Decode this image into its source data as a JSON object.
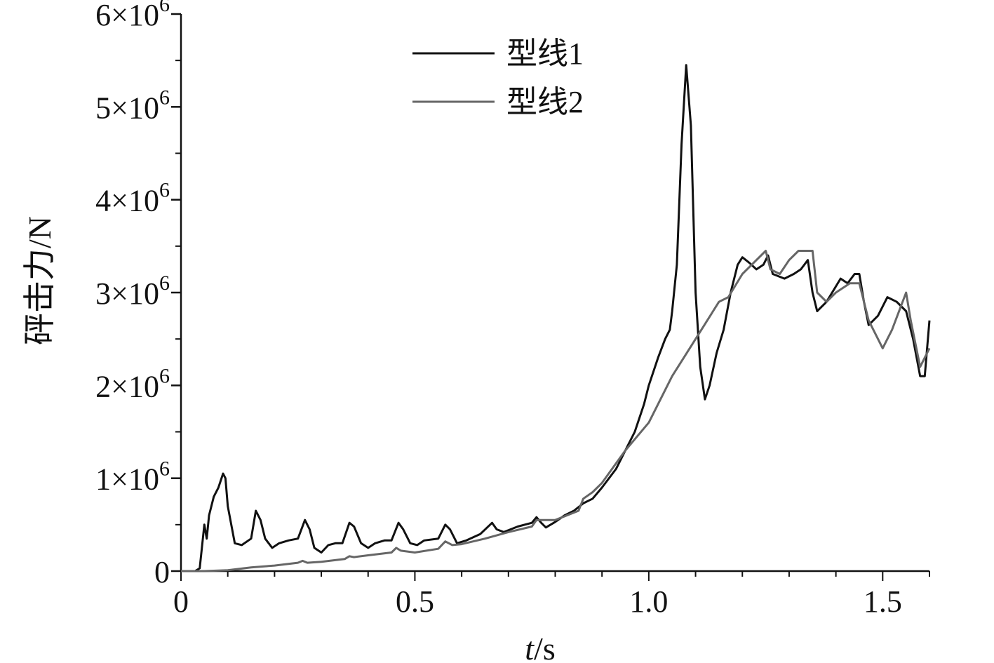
{
  "chart_data": {
    "type": "line",
    "xlabel_italic": "t",
    "xlabel_unit": "/s",
    "ylabel": "砰击力/N",
    "xlim": [
      0,
      1.6
    ],
    "ylim": [
      0,
      6000000
    ],
    "x_ticks": [
      0,
      0.5,
      1.0,
      1.5
    ],
    "x_tick_labels": [
      "0",
      "0.5",
      "1.0",
      "1.5"
    ],
    "y_ticks": [
      0,
      1000000,
      2000000,
      3000000,
      4000000,
      5000000,
      6000000
    ],
    "y_tick_mantissas": [
      "0",
      "1",
      "2",
      "3",
      "4",
      "5",
      "6"
    ],
    "y_tick_exponent_base": "×10",
    "y_tick_exponent": "6",
    "legend_position": "top-center",
    "grid": false,
    "series": [
      {
        "name": "型线1",
        "color": "#111111",
        "points": [
          [
            0,
            0
          ],
          [
            0.03,
            0
          ],
          [
            0.04,
            0.03
          ],
          [
            0.05,
            0.5
          ],
          [
            0.055,
            0.35
          ],
          [
            0.06,
            0.6
          ],
          [
            0.07,
            0.8
          ],
          [
            0.08,
            0.9
          ],
          [
            0.09,
            1.05
          ],
          [
            0.095,
            1.0
          ],
          [
            0.1,
            0.7
          ],
          [
            0.115,
            0.3
          ],
          [
            0.13,
            0.28
          ],
          [
            0.15,
            0.35
          ],
          [
            0.16,
            0.65
          ],
          [
            0.17,
            0.55
          ],
          [
            0.18,
            0.35
          ],
          [
            0.195,
            0.25
          ],
          [
            0.21,
            0.3
          ],
          [
            0.23,
            0.33
          ],
          [
            0.25,
            0.35
          ],
          [
            0.265,
            0.55
          ],
          [
            0.275,
            0.45
          ],
          [
            0.285,
            0.25
          ],
          [
            0.3,
            0.2
          ],
          [
            0.315,
            0.28
          ],
          [
            0.33,
            0.3
          ],
          [
            0.345,
            0.3
          ],
          [
            0.36,
            0.52
          ],
          [
            0.37,
            0.48
          ],
          [
            0.385,
            0.3
          ],
          [
            0.4,
            0.25
          ],
          [
            0.415,
            0.3
          ],
          [
            0.435,
            0.33
          ],
          [
            0.45,
            0.33
          ],
          [
            0.465,
            0.52
          ],
          [
            0.475,
            0.45
          ],
          [
            0.49,
            0.3
          ],
          [
            0.505,
            0.28
          ],
          [
            0.52,
            0.33
          ],
          [
            0.55,
            0.35
          ],
          [
            0.565,
            0.5
          ],
          [
            0.575,
            0.45
          ],
          [
            0.59,
            0.3
          ],
          [
            0.61,
            0.33
          ],
          [
            0.64,
            0.4
          ],
          [
            0.665,
            0.52
          ],
          [
            0.675,
            0.45
          ],
          [
            0.69,
            0.42
          ],
          [
            0.72,
            0.48
          ],
          [
            0.75,
            0.52
          ],
          [
            0.76,
            0.58
          ],
          [
            0.77,
            0.52
          ],
          [
            0.78,
            0.47
          ],
          [
            0.8,
            0.53
          ],
          [
            0.82,
            0.6
          ],
          [
            0.84,
            0.65
          ],
          [
            0.86,
            0.73
          ],
          [
            0.88,
            0.78
          ],
          [
            0.9,
            0.9
          ],
          [
            0.93,
            1.1
          ],
          [
            0.95,
            1.3
          ],
          [
            0.97,
            1.5
          ],
          [
            0.99,
            1.8
          ],
          [
            1.0,
            2.0
          ],
          [
            1.02,
            2.3
          ],
          [
            1.035,
            2.5
          ],
          [
            1.045,
            2.6
          ],
          [
            1.05,
            2.8
          ],
          [
            1.06,
            3.3
          ],
          [
            1.07,
            4.6
          ],
          [
            1.08,
            5.45
          ],
          [
            1.09,
            4.8
          ],
          [
            1.1,
            3.0
          ],
          [
            1.11,
            2.2
          ],
          [
            1.12,
            1.85
          ],
          [
            1.13,
            2.0
          ],
          [
            1.145,
            2.35
          ],
          [
            1.16,
            2.6
          ],
          [
            1.175,
            3.0
          ],
          [
            1.19,
            3.3
          ],
          [
            1.2,
            3.38
          ],
          [
            1.215,
            3.32
          ],
          [
            1.23,
            3.25
          ],
          [
            1.245,
            3.3
          ],
          [
            1.255,
            3.4
          ],
          [
            1.265,
            3.2
          ],
          [
            1.29,
            3.15
          ],
          [
            1.31,
            3.2
          ],
          [
            1.325,
            3.25
          ],
          [
            1.34,
            3.35
          ],
          [
            1.35,
            3.0
          ],
          [
            1.36,
            2.8
          ],
          [
            1.38,
            2.9
          ],
          [
            1.41,
            3.15
          ],
          [
            1.425,
            3.1
          ],
          [
            1.44,
            3.2
          ],
          [
            1.45,
            3.2
          ],
          [
            1.46,
            2.9
          ],
          [
            1.47,
            2.65
          ],
          [
            1.49,
            2.75
          ],
          [
            1.51,
            2.95
          ],
          [
            1.53,
            2.9
          ],
          [
            1.55,
            2.8
          ],
          [
            1.565,
            2.5
          ],
          [
            1.58,
            2.1
          ],
          [
            1.59,
            2.1
          ],
          [
            1.6,
            2.7
          ]
        ]
      },
      {
        "name": "型线2",
        "color": "#666666",
        "points": [
          [
            0,
            0
          ],
          [
            0.05,
            0
          ],
          [
            0.1,
            0.01
          ],
          [
            0.15,
            0.04
          ],
          [
            0.2,
            0.06
          ],
          [
            0.25,
            0.09
          ],
          [
            0.26,
            0.11
          ],
          [
            0.27,
            0.09
          ],
          [
            0.3,
            0.1
          ],
          [
            0.35,
            0.13
          ],
          [
            0.36,
            0.16
          ],
          [
            0.37,
            0.15
          ],
          [
            0.4,
            0.17
          ],
          [
            0.45,
            0.2
          ],
          [
            0.46,
            0.25
          ],
          [
            0.47,
            0.22
          ],
          [
            0.5,
            0.2
          ],
          [
            0.55,
            0.24
          ],
          [
            0.565,
            0.32
          ],
          [
            0.58,
            0.28
          ],
          [
            0.6,
            0.29
          ],
          [
            0.65,
            0.35
          ],
          [
            0.7,
            0.42
          ],
          [
            0.75,
            0.48
          ],
          [
            0.76,
            0.55
          ],
          [
            0.78,
            0.55
          ],
          [
            0.8,
            0.55
          ],
          [
            0.85,
            0.65
          ],
          [
            0.86,
            0.78
          ],
          [
            0.88,
            0.85
          ],
          [
            0.9,
            0.95
          ],
          [
            0.95,
            1.3
          ],
          [
            1.0,
            1.6
          ],
          [
            1.05,
            2.1
          ],
          [
            1.1,
            2.5
          ],
          [
            1.15,
            2.9
          ],
          [
            1.17,
            2.95
          ],
          [
            1.2,
            3.2
          ],
          [
            1.25,
            3.45
          ],
          [
            1.26,
            3.25
          ],
          [
            1.28,
            3.2
          ],
          [
            1.3,
            3.35
          ],
          [
            1.32,
            3.45
          ],
          [
            1.35,
            3.45
          ],
          [
            1.36,
            3.0
          ],
          [
            1.38,
            2.9
          ],
          [
            1.4,
            3.0
          ],
          [
            1.43,
            3.1
          ],
          [
            1.45,
            3.1
          ],
          [
            1.47,
            2.7
          ],
          [
            1.5,
            2.4
          ],
          [
            1.52,
            2.6
          ],
          [
            1.55,
            3.0
          ],
          [
            1.56,
            2.7
          ],
          [
            1.58,
            2.2
          ],
          [
            1.6,
            2.4
          ]
        ]
      }
    ],
    "y_scale_of_points": 1000000
  }
}
